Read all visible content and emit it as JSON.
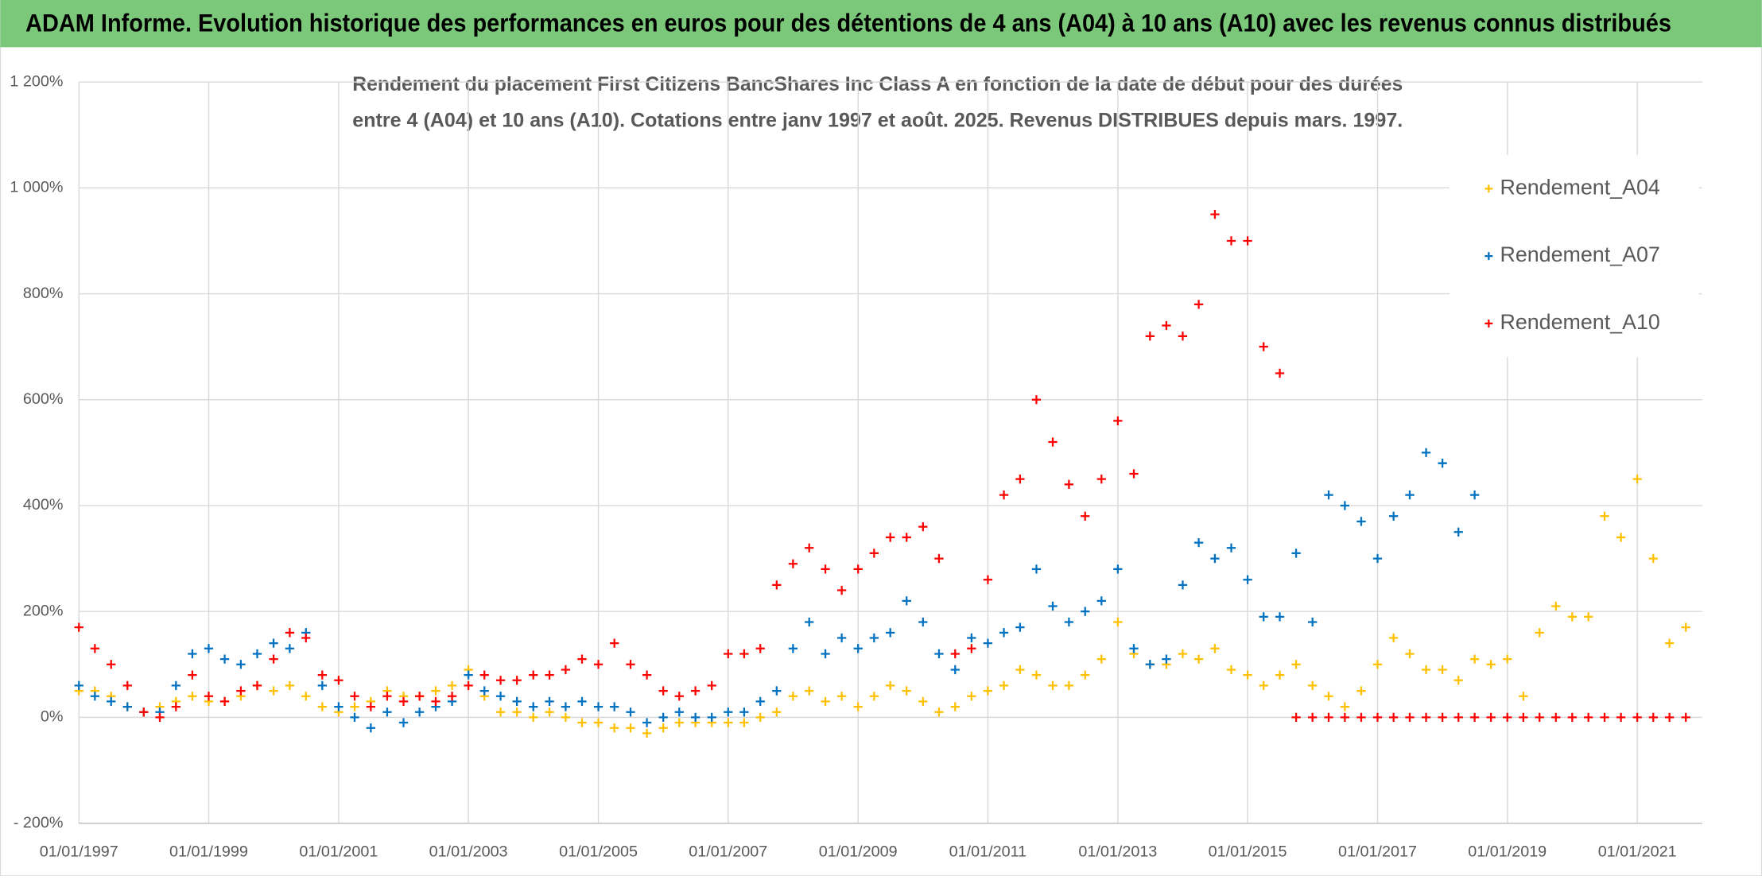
{
  "chart_data": {
    "type": "scatter",
    "title": "ADAM Informe. Evolution historique des performances en euros pour des détentions de 4 ans (A04) à 10 ans (A10) avec les revenus connus distribués",
    "subtitle": [
      "Rendement du placement First Citizens BancShares Inc Class A en fonction de la date de début pour des durées",
      "entre 4 (A04) et 10 ans (A10). Cotations entre janv 1997 et août. 2025. Revenus DISTRIBUES depuis mars. 1997."
    ],
    "x": [
      "1997-01-01",
      "1997-04-01",
      "1997-07-01",
      "1997-10-01",
      "1998-01-01",
      "1998-04-01",
      "1998-07-01",
      "1998-10-01",
      "1999-01-01",
      "1999-04-01",
      "1999-07-01",
      "1999-10-01",
      "2000-01-01",
      "2000-04-01",
      "2000-07-01",
      "2000-10-01",
      "2001-01-01",
      "2001-04-01",
      "2001-07-01",
      "2001-10-01",
      "2002-01-01",
      "2002-04-01",
      "2002-07-01",
      "2002-10-01",
      "2003-01-01",
      "2003-04-01",
      "2003-07-01",
      "2003-10-01",
      "2004-01-01",
      "2004-04-01",
      "2004-07-01",
      "2004-10-01",
      "2005-01-01",
      "2005-04-01",
      "2005-07-01",
      "2005-10-01",
      "2006-01-01",
      "2006-04-01",
      "2006-07-01",
      "2006-10-01",
      "2007-01-01",
      "2007-04-01",
      "2007-07-01",
      "2007-10-01",
      "2008-01-01",
      "2008-04-01",
      "2008-07-01",
      "2008-10-01",
      "2009-01-01",
      "2009-04-01",
      "2009-07-01",
      "2009-10-01",
      "2010-01-01",
      "2010-04-01",
      "2010-07-01",
      "2010-10-01",
      "2011-01-01",
      "2011-04-01",
      "2011-07-01",
      "2011-10-01",
      "2012-01-01",
      "2012-04-01",
      "2012-07-01",
      "2012-10-01",
      "2013-01-01",
      "2013-04-01",
      "2013-07-01",
      "2013-10-01",
      "2014-01-01",
      "2014-04-01",
      "2014-07-01",
      "2014-10-01",
      "2015-01-01",
      "2015-04-01",
      "2015-07-01",
      "2015-10-01",
      "2016-01-01",
      "2016-04-01",
      "2016-07-01",
      "2016-10-01",
      "2017-01-01",
      "2017-04-01",
      "2017-07-01",
      "2017-10-01",
      "2018-01-01",
      "2018-04-01",
      "2018-07-01",
      "2018-10-01",
      "2019-01-01",
      "2019-04-01",
      "2019-07-01",
      "2019-10-01",
      "2020-01-01",
      "2020-04-01",
      "2020-07-01",
      "2020-10-01",
      "2021-01-01",
      "2021-04-01",
      "2021-07-01",
      "2021-10-01"
    ],
    "series": [
      {
        "name": "Rendement_A04",
        "color": "#ffc000",
        "values": [
          50,
          50,
          40,
          20,
          10,
          20,
          30,
          40,
          30,
          30,
          40,
          60,
          50,
          60,
          40,
          20,
          10,
          20,
          30,
          50,
          40,
          40,
          50,
          60,
          90,
          40,
          10,
          10,
          0,
          10,
          0,
          -10,
          -10,
          -20,
          -20,
          -30,
          -20,
          -10,
          -10,
          -10,
          -10,
          -10,
          0,
          10,
          40,
          50,
          30,
          40,
          20,
          40,
          60,
          50,
          30,
          10,
          20,
          40,
          50,
          60,
          90,
          80,
          60,
          60,
          80,
          110,
          180,
          120,
          100,
          100,
          120,
          110,
          130,
          90,
          80,
          60,
          80,
          100,
          60,
          40,
          20,
          50,
          100,
          150,
          120,
          90,
          90,
          70,
          110,
          100,
          110,
          40,
          160,
          210,
          190,
          190,
          380,
          340,
          450,
          300,
          140,
          170
        ]
      },
      {
        "name": "Rendement_A07",
        "color": "#0070c0",
        "values": [
          60,
          40,
          30,
          20,
          10,
          10,
          60,
          120,
          130,
          110,
          100,
          120,
          140,
          130,
          160,
          60,
          20,
          0,
          -20,
          10,
          -10,
          10,
          20,
          30,
          80,
          50,
          40,
          30,
          20,
          30,
          20,
          30,
          20,
          20,
          10,
          -10,
          0,
          10,
          0,
          0,
          10,
          10,
          30,
          50,
          130,
          180,
          120,
          150,
          130,
          150,
          160,
          220,
          180,
          120,
          90,
          150,
          140,
          160,
          170,
          280,
          210,
          180,
          200,
          220,
          280,
          130,
          100,
          110,
          250,
          330,
          300,
          320,
          260,
          190,
          190,
          310,
          180,
          420,
          400,
          370,
          300,
          380,
          420,
          500,
          480,
          350,
          420,
          null,
          null,
          null,
          null,
          null,
          null,
          null,
          null,
          null,
          null,
          null,
          null,
          null
        ]
      },
      {
        "name": "Rendement_A10",
        "color": "#ff0000",
        "values": [
          170,
          130,
          100,
          60,
          10,
          0,
          20,
          80,
          40,
          30,
          50,
          60,
          110,
          160,
          150,
          80,
          70,
          40,
          20,
          40,
          30,
          40,
          30,
          40,
          60,
          80,
          70,
          70,
          80,
          80,
          90,
          110,
          100,
          140,
          100,
          80,
          50,
          40,
          50,
          60,
          120,
          120,
          130,
          250,
          290,
          320,
          280,
          240,
          280,
          310,
          340,
          340,
          360,
          300,
          120,
          130,
          260,
          420,
          450,
          600,
          520,
          440,
          380,
          450,
          560,
          460,
          720,
          740,
          720,
          780,
          950,
          900,
          900,
          700,
          650,
          0,
          0,
          0,
          0,
          0,
          0,
          0,
          0,
          0,
          0,
          0,
          0,
          0,
          0,
          0,
          0,
          0,
          0,
          0,
          0,
          0,
          0,
          0,
          0,
          0
        ]
      }
    ],
    "xlim": [
      "1997-01-01",
      "2022-01-01"
    ],
    "xticks": [
      {
        "value": "1997-01-01",
        "label": "01/01/1997"
      },
      {
        "value": "1999-01-01",
        "label": "01/01/1999"
      },
      {
        "value": "2001-01-01",
        "label": "01/01/2001"
      },
      {
        "value": "2003-01-01",
        "label": "01/01/2003"
      },
      {
        "value": "2005-01-01",
        "label": "01/01/2005"
      },
      {
        "value": "2007-01-01",
        "label": "01/01/2007"
      },
      {
        "value": "2009-01-01",
        "label": "01/01/2009"
      },
      {
        "value": "2011-01-01",
        "label": "01/01/2011"
      },
      {
        "value": "2013-01-01",
        "label": "01/01/2013"
      },
      {
        "value": "2015-01-01",
        "label": "01/01/2015"
      },
      {
        "value": "2017-01-01",
        "label": "01/01/2017"
      },
      {
        "value": "2019-01-01",
        "label": "01/01/2019"
      },
      {
        "value": "2021-01-01",
        "label": "01/01/2021"
      }
    ],
    "ylim": [
      -200,
      1200
    ],
    "yticks": [
      {
        "value": -200,
        "label": "- 200%"
      },
      {
        "value": 0,
        "label": "0%"
      },
      {
        "value": 200,
        "label": "200%"
      },
      {
        "value": 400,
        "label": "400%"
      },
      {
        "value": 600,
        "label": "600%"
      },
      {
        "value": 800,
        "label": "800%"
      },
      {
        "value": 1000,
        "label": "1 000%"
      },
      {
        "value": 1200,
        "label": "1 200%"
      }
    ],
    "grid": true,
    "legend": "right"
  }
}
